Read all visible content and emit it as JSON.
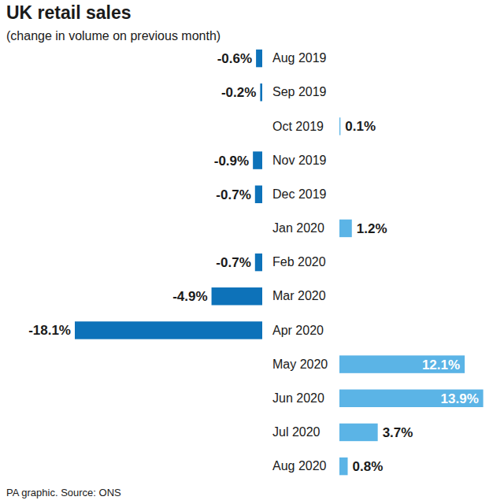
{
  "chart_data": {
    "type": "bar",
    "orientation": "horizontal",
    "title": "UK retail sales",
    "subtitle": "(change in volume on previous month)",
    "source": "PA graphic. Source: ONS",
    "categories": [
      "Aug 2019",
      "Sep 2019",
      "Oct 2019",
      "Nov 2019",
      "Dec 2019",
      "Jan 2020",
      "Feb 2020",
      "Mar 2020",
      "Apr 2020",
      "May 2020",
      "Jun 2020",
      "Jul 2020",
      "Aug 2020"
    ],
    "values": [
      -0.6,
      -0.2,
      0.1,
      -0.9,
      -0.7,
      1.2,
      -0.7,
      -4.9,
      -18.1,
      12.1,
      13.9,
      3.7,
      0.8
    ],
    "value_labels": [
      "-0.6%",
      "-0.2%",
      "0.1%",
      "-0.9%",
      "-0.7%",
      "1.2%",
      "-0.7%",
      "-4.9%",
      "-18.1%",
      "12.1%",
      "13.9%",
      "3.7%",
      "0.8%"
    ],
    "colors": [
      "#0d72b9",
      "#0d72b9",
      "#5bb4e6",
      "#0d72b9",
      "#0d72b9",
      "#5bb4e6",
      "#0d72b9",
      "#0d72b9",
      "#0d72b9",
      "#5bb4e6",
      "#5bb4e6",
      "#5bb4e6",
      "#5bb4e6"
    ],
    "data_labels": true,
    "tick_labels": "y"
  }
}
